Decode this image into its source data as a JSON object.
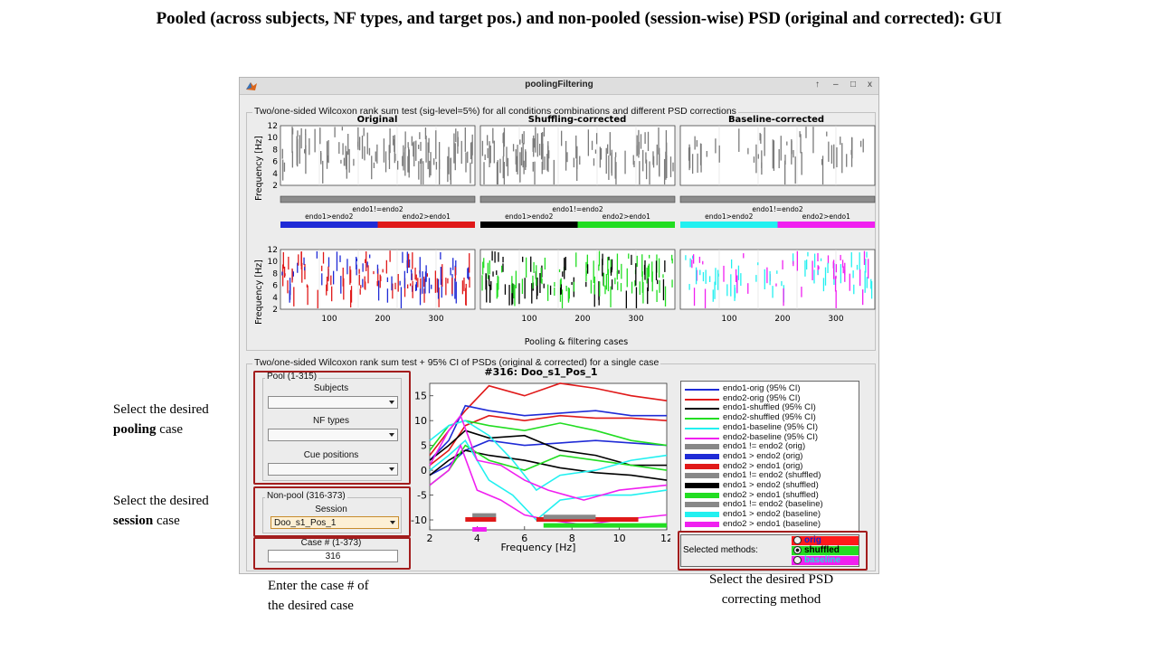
{
  "slide_title": "Pooled (across subjects, NF types, and target pos.) and non-pooled (session-wise) PSD (original and corrected): GUI",
  "callouts": {
    "pooling": {
      "line1": "Select the desired",
      "bold": "pooling",
      "rest": " case"
    },
    "session": {
      "line1": "Select the desired",
      "bold": "session",
      "rest": " case"
    },
    "case_num": {
      "line1": "Enter the case # of",
      "line2": "the desired case"
    },
    "method": {
      "line1": "Select the desired PSD",
      "line2": "correcting method"
    }
  },
  "window": {
    "title": "poolingFiltering",
    "buttons": [
      "↑",
      "–",
      "□",
      "x"
    ]
  },
  "top_panel": {
    "title": "Two/one-sided Wilcoxon rank sum test (sig-level=5%) for all conditions combinations and different PSD corrections",
    "columns": [
      "Original",
      "Shuffling-corrected",
      "Baseline-corrected"
    ],
    "ylabel": "Frequency [Hz]",
    "yticks": [
      "12",
      "10",
      "8",
      "6",
      "4",
      "2"
    ],
    "xticks": [
      "100",
      "200",
      "300"
    ],
    "xlabel": "Pooling & filtering cases",
    "bar_label_neq": "endo1!=endo2",
    "bar_label_gt1": "endo1>endo2",
    "bar_label_gt2": "endo2>endo1"
  },
  "bottom_panel": {
    "title": "Two/one-sided Wilcoxon rank sum test + 95% CI of PSDs (original & corrected) for a single case",
    "pool": {
      "title": "Pool (1-315)",
      "subjects_label": "Subjects",
      "nf_types_label": "NF types",
      "cue_positions_label": "Cue positions",
      "subjects_value": "",
      "nf_types_value": "",
      "cue_positions_value": ""
    },
    "nonpool": {
      "title": "Non-pool (316-373)",
      "session_label": "Session",
      "session_value": "Doo_s1_Pos_1"
    },
    "case": {
      "label": "Case # (1-373)",
      "value": "316"
    },
    "psd_plot": {
      "title": "#316: Doo_s1_Pos_1",
      "xlabel": "Frequency [Hz]",
      "xticks": [
        "2",
        "4",
        "6",
        "8",
        "10",
        "12"
      ],
      "yticks": [
        "15",
        "10",
        "5",
        "0",
        "-5",
        "-10"
      ]
    },
    "legend": [
      {
        "label": "endo1-orig (95% CI)",
        "color": "#1f2bd6",
        "style": "line"
      },
      {
        "label": "endo2-orig (95% CI)",
        "color": "#e01919",
        "style": "line"
      },
      {
        "label": "endo1-shuffled (95% CI)",
        "color": "#000000",
        "style": "line"
      },
      {
        "label": "endo2-shuffled (95% CI)",
        "color": "#22dd22",
        "style": "line"
      },
      {
        "label": "endo1-baseline (95% CI)",
        "color": "#22f0f0",
        "style": "line"
      },
      {
        "label": "endo2-baseline (95% CI)",
        "color": "#f020f0",
        "style": "line"
      },
      {
        "label": "endo1 != endo2 (orig)",
        "color": "#888888",
        "style": "bar"
      },
      {
        "label": "endo1 > endo2 (orig)",
        "color": "#1f2bd6",
        "style": "bar"
      },
      {
        "label": "endo2 > endo1 (orig)",
        "color": "#e01919",
        "style": "bar"
      },
      {
        "label": "endo1 != endo2 (shuffled)",
        "color": "#888888",
        "style": "bar"
      },
      {
        "label": "endo1 > endo2 (shuffled)",
        "color": "#000000",
        "style": "bar"
      },
      {
        "label": "endo2 > endo1 (shuffled)",
        "color": "#22dd22",
        "style": "bar"
      },
      {
        "label": "endo1 != endo2 (baseline)",
        "color": "#888888",
        "style": "bar"
      },
      {
        "label": "endo1 > endo2 (baseline)",
        "color": "#22f0f0",
        "style": "bar"
      },
      {
        "label": "endo2 > endo1 (baseline)",
        "color": "#f020f0",
        "style": "bar"
      }
    ],
    "methods": {
      "label": "Selected methods:",
      "options": [
        {
          "label": "orig",
          "bg": "#ff1a1a",
          "fg": "#1a1acc",
          "selected": false
        },
        {
          "label": "shuffled",
          "bg": "#22dd22",
          "fg": "#000000",
          "selected": true
        },
        {
          "label": "baseline",
          "bg": "#f020f0",
          "fg": "#22e0e0",
          "selected": false
        }
      ]
    }
  }
}
